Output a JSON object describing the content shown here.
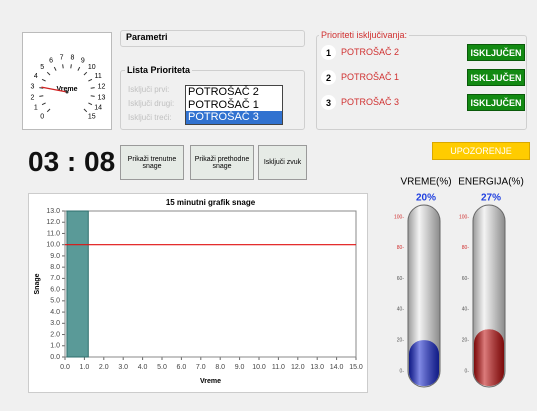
{
  "gauge": {
    "label": "Vreme",
    "range": [
      0,
      15
    ],
    "ticks": [
      0,
      1,
      2,
      3,
      4,
      5,
      6,
      7,
      8,
      9,
      10,
      11,
      12,
      13,
      14,
      15
    ],
    "value": 3.1
  },
  "clock": "03 : 08",
  "parametri": {
    "title": "Parametri"
  },
  "lista": {
    "title": "Lista Prioriteta",
    "labels": [
      "Isključi prvi:",
      "Isključi drugi:",
      "Isključi treći:"
    ],
    "items": [
      "POTROŠAČ 2",
      "POTROŠAČ 1",
      "POTROŠAČ 3"
    ]
  },
  "prioriteti": {
    "title": "Prioriteti isključivanja:",
    "rows": [
      {
        "number": "1",
        "name": "POTROŠAČ 2",
        "status": "ISKLJUČEN"
      },
      {
        "number": "2",
        "name": "POTROŠAČ 1",
        "status": "ISKLJUČEN"
      },
      {
        "number": "3",
        "name": "POTROŠAČ 3",
        "status": "ISKLJUČEN"
      }
    ]
  },
  "buttons": [
    "Prikaži trenutne snage",
    "Prikaži prethodne snage",
    "Isključi zvuk"
  ],
  "warning": "UPOZORENJE",
  "chart_data": {
    "type": "line",
    "title": "15 minutni grafik snage",
    "xlabel": "Vreme",
    "ylabel": "Snage",
    "xlim": [
      0,
      15
    ],
    "ylim": [
      0,
      13
    ],
    "xticks": [
      {
        "value": 0,
        "label": "0.0"
      },
      {
        "value": 1,
        "label": "1.0"
      },
      {
        "value": 2,
        "label": "2.0"
      },
      {
        "value": 3,
        "label": "3.0"
      },
      {
        "value": 4,
        "label": "4.0"
      },
      {
        "value": 5,
        "label": "5.0"
      },
      {
        "value": 6,
        "label": "6.0"
      },
      {
        "value": 7,
        "label": "7.0"
      },
      {
        "value": 8,
        "label": "8.0"
      },
      {
        "value": 9,
        "label": "9.0"
      },
      {
        "value": 10,
        "label": "10.0"
      },
      {
        "value": 11,
        "label": "11.0"
      },
      {
        "value": 12,
        "label": "12.0"
      },
      {
        "value": 13,
        "label": "13.0"
      },
      {
        "value": 14,
        "label": "14.0"
      },
      {
        "value": 15,
        "label": "15.0"
      }
    ],
    "yticks": [
      {
        "value": 0,
        "label": "0.0"
      },
      {
        "value": 1,
        "label": "1.0"
      },
      {
        "value": 2,
        "label": "2.0"
      },
      {
        "value": 3,
        "label": "3.0"
      },
      {
        "value": 4,
        "label": "4.0"
      },
      {
        "value": 5,
        "label": "5.0"
      },
      {
        "value": 6,
        "label": "6.0"
      },
      {
        "value": 7,
        "label": "7.0"
      },
      {
        "value": 8,
        "label": "8.0"
      },
      {
        "value": 9,
        "label": "9.0"
      },
      {
        "value": 10,
        "label": "10.0"
      },
      {
        "value": 11,
        "label": "11.0"
      },
      {
        "value": 12,
        "label": "12.0"
      },
      {
        "value": 13,
        "label": "13.0"
      }
    ],
    "area": {
      "color": "#5a9a98",
      "x": [
        0.1,
        1.2
      ],
      "values": [
        13,
        13
      ]
    },
    "series": [
      {
        "color": "#e01010",
        "x": [
          0,
          15
        ],
        "values": [
          10,
          10
        ]
      }
    ]
  },
  "meters": {
    "ylim": [
      0,
      100
    ],
    "yticks": [
      {
        "value": 0,
        "label": "0-"
      },
      {
        "value": 20,
        "label": "20-"
      },
      {
        "value": 40,
        "label": "40-"
      },
      {
        "value": 60,
        "label": "60-"
      },
      {
        "value": 80,
        "label": "80-"
      },
      {
        "value": 100,
        "label": "100-"
      }
    ],
    "series": [
      {
        "name": "VREME(%)",
        "color": "#1a2ad0",
        "values": [
          20
        ],
        "value_labels": [
          "20%"
        ]
      },
      {
        "name": "ENERGIJA(%)",
        "color": "#c01010",
        "values": [
          27
        ],
        "value_labels": [
          "27%"
        ]
      }
    ]
  }
}
